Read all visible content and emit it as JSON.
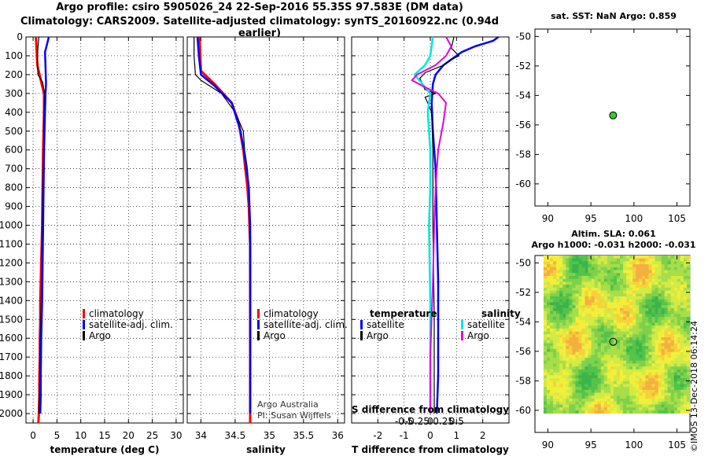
{
  "header": {
    "line1": "Argo profile: csiro 5905026_24 22-Sep-2016 55.35S 97.583E (DM data)",
    "line2": "Climatology: CARS2009. Satellite-adjusted climatology: synTS_20160922.nc (0.94d earlier)"
  },
  "colors": {
    "climatology": "#ff0000",
    "satellite": "#0000ff",
    "argo": "#000000",
    "s_satellite": "#00e5e5",
    "s_argo": "#e000e0",
    "marker": "#33cc33"
  },
  "depth_axis": {
    "ylim": [
      0,
      2050
    ],
    "ticks": [
      "0",
      "100",
      "200",
      "300",
      "400",
      "500",
      "600",
      "700",
      "800",
      "900",
      "1000",
      "1100",
      "1200",
      "1300",
      "1400",
      "1500",
      "1600",
      "1700",
      "1800",
      "1900",
      "2000"
    ]
  },
  "chart_data": [
    {
      "id": "temp",
      "type": "line",
      "xlabel": "temperature (deg C)",
      "xlim": [
        -1.5,
        31.5
      ],
      "xticks": [
        0,
        5,
        10,
        15,
        20,
        25,
        30
      ],
      "xticklabels": [
        "0",
        "5",
        "10",
        "15",
        "20",
        "25",
        "30"
      ],
      "legend": [
        "climatology",
        "satellite-adj. clim.",
        "Argo"
      ],
      "series": [
        {
          "name": "climatology",
          "color_key": "climatology",
          "width": 3,
          "x": [
            0.6,
            0.7,
            0.9,
            1.8,
            2.3,
            2.3,
            2.1,
            2.0,
            1.9,
            1.8,
            1.7,
            1.6,
            1.5,
            1.5,
            1.4,
            1.4,
            1.3,
            1.3,
            1.2,
            1.1
          ],
          "y": [
            0,
            50,
            150,
            250,
            300,
            400,
            600,
            800,
            1000,
            1100,
            1200,
            1300,
            1400,
            1500,
            1600,
            1700,
            1800,
            1900,
            2000,
            2050
          ]
        },
        {
          "name": "Argo",
          "color_key": "argo",
          "width": 1.2,
          "x": [
            1.2,
            1.0,
            0.9,
            1.0,
            2.0,
            2.4,
            2.3,
            2.2,
            2.0,
            1.9,
            1.8,
            1.7,
            1.6,
            1.5,
            1.4,
            1.3,
            1.2
          ],
          "y": [
            0,
            60,
            120,
            200,
            240,
            300,
            400,
            600,
            800,
            1000,
            1200,
            1400,
            1500,
            1600,
            1800,
            1900,
            2000
          ]
        },
        {
          "name": "satellite-adj. clim.",
          "color_key": "satellite",
          "width": 2.5,
          "x": [
            3.3,
            2.8,
            2.5,
            2.6,
            2.7,
            2.6,
            2.5,
            2.3,
            2.2,
            2.1,
            2.0,
            1.9,
            1.8,
            1.7,
            1.6,
            1.6,
            1.5
          ],
          "y": [
            0,
            50,
            80,
            150,
            250,
            300,
            400,
            600,
            800,
            1000,
            1200,
            1400,
            1500,
            1600,
            1800,
            1900,
            2000
          ]
        }
      ]
    },
    {
      "id": "sal",
      "type": "line",
      "xlabel": "salinity",
      "xlim": [
        33.8,
        36.1
      ],
      "xticks": [
        34,
        34.5,
        35,
        35.5,
        36
      ],
      "xticklabels": [
        "34",
        "34.5",
        "35",
        "35.5",
        "36"
      ],
      "legend": [
        "climatology",
        "satellite-adj. clim.",
        "Argo"
      ],
      "series": [
        {
          "name": "climatology",
          "color_key": "climatology",
          "width": 3,
          "x": [
            33.98,
            33.99,
            34.0,
            34.2,
            34.45,
            34.55,
            34.62,
            34.68,
            34.7,
            34.71,
            34.72,
            34.72,
            34.72,
            34.72
          ],
          "y": [
            0,
            100,
            180,
            250,
            350,
            450,
            600,
            800,
            900,
            1000,
            1100,
            1500,
            1900,
            2050
          ]
        },
        {
          "name": "Argo",
          "color_key": "argo",
          "width": 1.2,
          "x": [
            33.9,
            33.9,
            33.92,
            34.0,
            34.3,
            34.5,
            34.62,
            34.64,
            34.68,
            34.7,
            34.71,
            34.72,
            34.72
          ],
          "y": [
            0,
            100,
            200,
            230,
            300,
            400,
            500,
            600,
            700,
            800,
            1000,
            1500,
            2000
          ]
        },
        {
          "name": "satellite-adj. clim.",
          "color_key": "satellite",
          "width": 2.5,
          "x": [
            33.95,
            33.97,
            34.0,
            34.2,
            34.45,
            34.58,
            34.65,
            34.7,
            34.71,
            34.72,
            34.72,
            34.72
          ],
          "y": [
            0,
            100,
            200,
            260,
            350,
            500,
            650,
            800,
            900,
            1000,
            1500,
            2000
          ]
        }
      ],
      "credit": [
        "Argo Australia",
        "PI: Susan Wijffels"
      ]
    },
    {
      "id": "diff",
      "type": "line",
      "xlabel": "T difference from climatology",
      "xlim": [
        -3.0,
        3.0
      ],
      "xticks": [
        -2,
        -1,
        0,
        1,
        2
      ],
      "xticklabels": [
        "-2",
        "-1",
        "0",
        "1",
        "2"
      ],
      "top_xticks": [
        -1.0,
        -0.5,
        0,
        0.5,
        1.0
      ],
      "top_xticklabels": [
        "-0.5",
        "-0.25",
        "0",
        "0.25",
        "0.5"
      ],
      "top_xlabel": "S difference from climatology",
      "legend_t_title": "temperature",
      "legend_s_title": "salinity",
      "legend": [
        "satellite",
        "Argo",
        "satellite",
        "Argo"
      ],
      "series": [
        {
          "name": "T satellite",
          "color_key": "satellite",
          "width": 2.5,
          "x": [
            2.6,
            2.4,
            1.7,
            1.2,
            0.9,
            0.5,
            0.2,
            0.1,
            0.05,
            0.1,
            0.2,
            0.25,
            0.3,
            0.3,
            0.3,
            0.25
          ],
          "y": [
            0,
            20,
            50,
            80,
            110,
            150,
            200,
            250,
            350,
            500,
            700,
            1000,
            1300,
            1600,
            1800,
            2000
          ]
        },
        {
          "name": "T Argo",
          "color_key": "argo",
          "width": 1.2,
          "x": [
            0.9,
            0.8,
            1.1,
            0.8,
            0.5,
            -0.2,
            -0.4,
            -0.3,
            -0.2,
            0.2,
            -0.2,
            -0.1,
            0.05,
            0.1,
            0.1,
            0.15,
            0.15
          ],
          "y": [
            0,
            60,
            100,
            120,
            150,
            190,
            220,
            250,
            280,
            300,
            320,
            350,
            400,
            600,
            1000,
            1500,
            2000
          ]
        },
        {
          "name": "S satellite",
          "color_key": "s_satellite",
          "width": 2.5,
          "x": [
            0.1,
            0.0,
            -0.2,
            -0.6,
            -0.3,
            0.0,
            -0.1,
            0.0,
            0.0,
            -0.05,
            0.0,
            0.0,
            0.0
          ],
          "y": [
            0,
            100,
            150,
            200,
            250,
            300,
            400,
            600,
            800,
            1000,
            1400,
            1700,
            2000
          ]
        },
        {
          "name": "S Argo",
          "color_key": "s_argo",
          "width": 2,
          "x": [
            0.6,
            0.8,
            0.6,
            0.2,
            -0.5,
            -0.7,
            -0.3,
            0.3,
            0.6,
            0.5,
            0.3,
            0.2,
            0.15,
            0.1,
            0.0,
            0.0
          ],
          "y": [
            0,
            50,
            100,
            150,
            200,
            230,
            260,
            300,
            350,
            450,
            600,
            800,
            1000,
            1300,
            1700,
            2000
          ]
        }
      ]
    },
    {
      "id": "map_sst",
      "type": "scatter",
      "title": "sat. SST: NaN Argo: 0.859",
      "xlim": [
        88.5,
        106.5
      ],
      "ylim": [
        -61.5,
        -49.5
      ],
      "xticks": [
        90,
        95,
        100,
        105
      ],
      "yticks": [
        -50,
        -52,
        -54,
        -56,
        -58,
        -60
      ],
      "points": [
        {
          "x": 97.583,
          "y": -55.35
        }
      ]
    },
    {
      "id": "map_sla",
      "type": "heatmap",
      "title": "Altim. SLA: 0.061",
      "title2": "Argo h1000: -0.031 h2000: -0.031",
      "xlim": [
        88.5,
        106.5
      ],
      "ylim": [
        -61.5,
        -49.5
      ],
      "xticks": [
        90,
        95,
        100,
        105
      ],
      "yticks": [
        -50,
        -52,
        -54,
        -56,
        -58,
        -60
      ],
      "points": [
        {
          "x": 97.583,
          "y": -55.35
        }
      ]
    }
  ],
  "footer": {
    "imos": "©IMOS 13-Dec-2018 06:14:24"
  }
}
